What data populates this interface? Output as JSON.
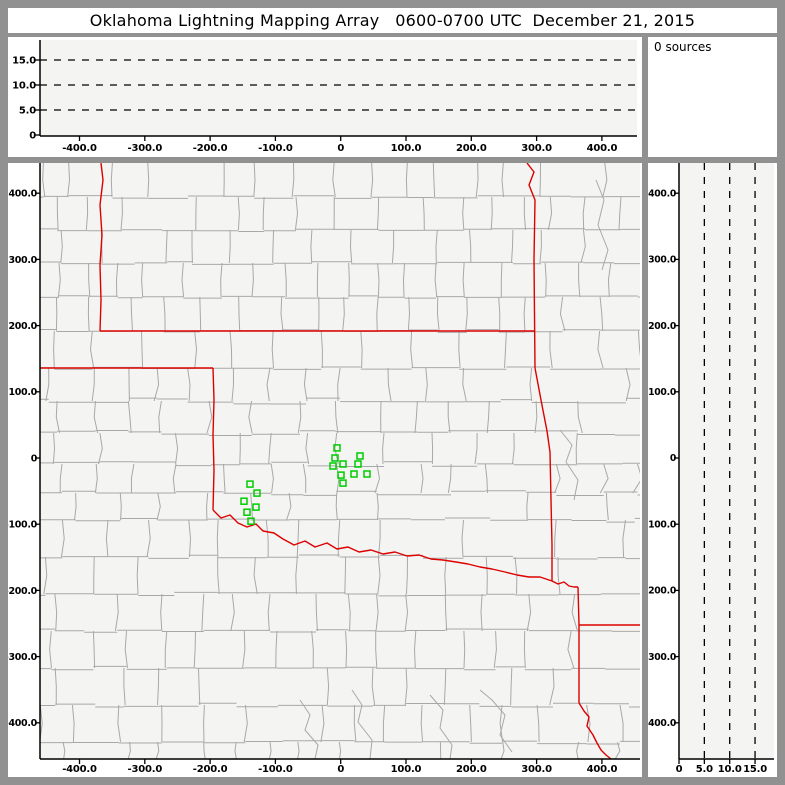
{
  "header": {
    "title": "Oklahoma Lightning Mapping Array   0600-0700 UTC  December 21, 2015"
  },
  "source_panel": {
    "label": "0 sources",
    "count": 0
  },
  "colors": {
    "chrome": "#919191",
    "panel_bg": "#ffffff",
    "plot_bg": "#f4f4f2",
    "county_line": "#a8a8a8",
    "state_line": "#dd0000",
    "station": "#00cc00",
    "axis": "#000000",
    "dash": "#000000",
    "text": "#000000"
  },
  "chart_data": [
    {
      "id": "alt_vs_ew",
      "type": "scatter",
      "orientation": "altitude-vs-east-west-km",
      "xlim": [
        -460,
        458
      ],
      "ylim": [
        0,
        19.2
      ],
      "x_ticks": [
        {
          "v": -400,
          "label": "-400.0"
        },
        {
          "v": -300,
          "label": "-300.0"
        },
        {
          "v": -200,
          "label": "-200.0"
        },
        {
          "v": -100,
          "label": "-100.0"
        },
        {
          "v": 0,
          "label": "0"
        },
        {
          "v": 100,
          "label": "100.0"
        },
        {
          "v": 200,
          "label": "200.0"
        },
        {
          "v": 300,
          "label": "300.0"
        },
        {
          "v": 400,
          "label": "400.0"
        }
      ],
      "y_ticks": [
        {
          "v": 15,
          "label": "15.0"
        },
        {
          "v": 10,
          "label": "10.0"
        },
        {
          "v": 5,
          "label": "5.0"
        },
        {
          "v": 0,
          "label": "0"
        }
      ],
      "dashed_y": [
        5,
        10,
        15
      ],
      "grid": "dashed",
      "points": []
    },
    {
      "id": "source_count",
      "type": "table",
      "label": "0 sources",
      "count": 0
    },
    {
      "id": "plan_view",
      "type": "scatter",
      "orientation": "plan-view-map-km",
      "xlim": [
        -460,
        458
      ],
      "ylim": [
        -455,
        446
      ],
      "x_ticks": [
        {
          "v": -400,
          "label": "-400.0"
        },
        {
          "v": -300,
          "label": "-300.0"
        },
        {
          "v": -200,
          "label": "-200.0"
        },
        {
          "v": -100,
          "label": "-100.0"
        },
        {
          "v": 0,
          "label": "0"
        },
        {
          "v": 100,
          "label": "100.0"
        },
        {
          "v": 200,
          "label": "200.0"
        },
        {
          "v": 300,
          "label": "300.0"
        },
        {
          "v": 400,
          "label": "400.0"
        }
      ],
      "y_ticks": [
        {
          "v": 400,
          "label": "400.0"
        },
        {
          "v": 300,
          "label": "300.0"
        },
        {
          "v": 200,
          "label": "200.0"
        },
        {
          "v": 100,
          "label": "100.0"
        },
        {
          "v": 0,
          "label": "0"
        },
        {
          "v": -100,
          "label": "-100.0"
        },
        {
          "v": -200,
          "label": "-200.0"
        },
        {
          "v": -300,
          "label": "-300.0"
        },
        {
          "v": -400,
          "label": "-400.0"
        }
      ],
      "points": [],
      "stations": [
        {
          "x": -5.7,
          "y": 15.2
        },
        {
          "x": -8.7,
          "y": 0.0
        },
        {
          "x": 29.6,
          "y": 3.0
        },
        {
          "x": -11.8,
          "y": -12.1
        },
        {
          "x": 3.5,
          "y": -9.1
        },
        {
          "x": 26.5,
          "y": -9.1
        },
        {
          "x": 0.5,
          "y": -25.8
        },
        {
          "x": 20.4,
          "y": -24.2
        },
        {
          "x": 40.3,
          "y": -24.2
        },
        {
          "x": 3.5,
          "y": -37.9
        },
        {
          "x": -138.9,
          "y": -39.4
        },
        {
          "x": -128.2,
          "y": -53.0
        },
        {
          "x": -148.1,
          "y": -65.2
        },
        {
          "x": -129.7,
          "y": -74.2
        },
        {
          "x": -143.5,
          "y": -81.8
        },
        {
          "x": -137.4,
          "y": -95.5
        }
      ]
    },
    {
      "id": "alt_vs_ns",
      "type": "scatter",
      "orientation": "north-south-km-vs-altitude",
      "xlim": [
        0,
        18.8
      ],
      "ylim": [
        -455,
        446
      ],
      "x_ticks": [
        {
          "v": 0,
          "label": "0"
        },
        {
          "v": 5,
          "label": "5.0"
        },
        {
          "v": 10,
          "label": "10.0"
        },
        {
          "v": 15,
          "label": "15.0"
        }
      ],
      "y_ticks": [
        {
          "v": 400,
          "label": "400.0"
        },
        {
          "v": 300,
          "label": "300.0"
        },
        {
          "v": 200,
          "label": "200.0"
        },
        {
          "v": 100,
          "label": "100.0"
        },
        {
          "v": 0,
          "label": "0"
        },
        {
          "v": -100,
          "label": "-100.0"
        },
        {
          "v": -200,
          "label": "-200.0"
        },
        {
          "v": -300,
          "label": "-300.0"
        },
        {
          "v": -400,
          "label": "-400.0"
        }
      ],
      "dashed_x": [
        5,
        10,
        15
      ],
      "grid": "dashed",
      "points": []
    }
  ]
}
